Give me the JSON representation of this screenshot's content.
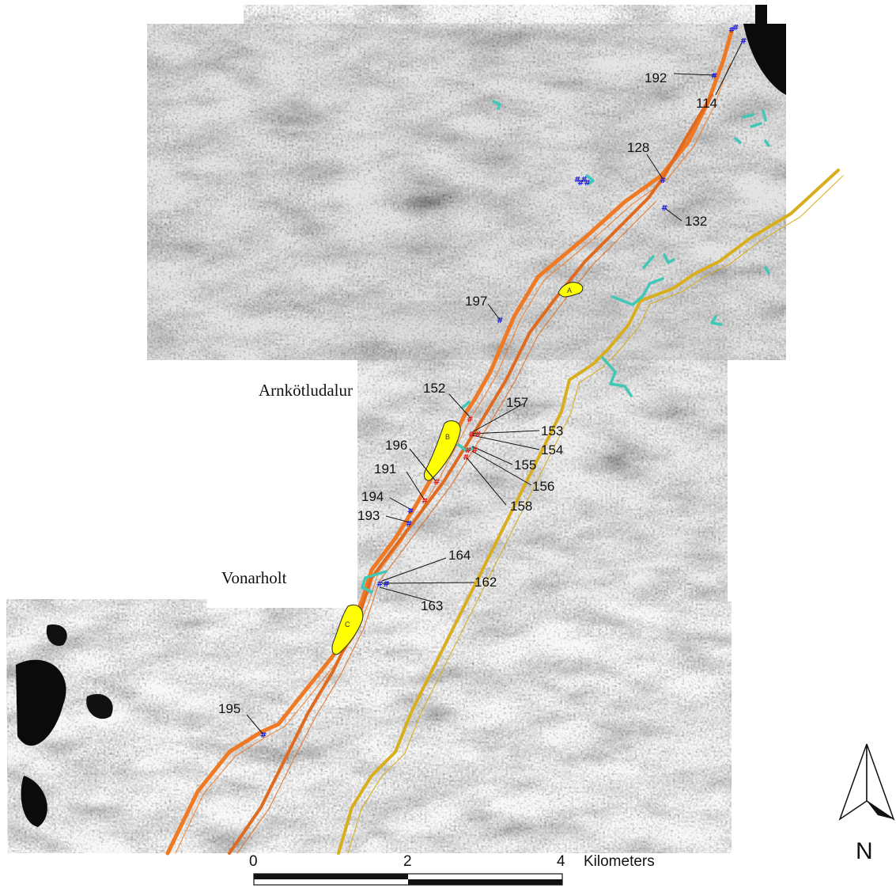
{
  "map": {
    "places": {
      "arnkotludalur": "Arnkötludalur",
      "vonarholt": "Vonarholt"
    },
    "areas": {
      "a": "A",
      "b": "B",
      "c": "C"
    },
    "points": [
      {
        "id": "p192",
        "label": "192"
      },
      {
        "id": "p114",
        "label": "114"
      },
      {
        "id": "p128",
        "label": "128"
      },
      {
        "id": "p132",
        "label": "132"
      },
      {
        "id": "p197",
        "label": "197"
      },
      {
        "id": "p152",
        "label": "152"
      },
      {
        "id": "p157",
        "label": "157"
      },
      {
        "id": "p153",
        "label": "153"
      },
      {
        "id": "p154",
        "label": "154"
      },
      {
        "id": "p155",
        "label": "155"
      },
      {
        "id": "p156",
        "label": "156"
      },
      {
        "id": "p158",
        "label": "158"
      },
      {
        "id": "p196",
        "label": "196"
      },
      {
        "id": "p191",
        "label": "191"
      },
      {
        "id": "p194",
        "label": "194"
      },
      {
        "id": "p193",
        "label": "193"
      },
      {
        "id": "p164",
        "label": "164"
      },
      {
        "id": "p162",
        "label": "162"
      },
      {
        "id": "p163",
        "label": "163"
      },
      {
        "id": "p195",
        "label": "195"
      }
    ],
    "scale_bar": {
      "ticks": [
        "0",
        "2",
        "4"
      ],
      "unit": "Kilometers"
    },
    "north_arrow": {
      "label": "N"
    },
    "colors": {
      "fault_orange": "#f07a24",
      "fault_dark_orange": "#e06a1e",
      "fault_yellow": "#d8ae1c",
      "fissure_cyan": "#3fc8b8",
      "area_yellow": "#ffff00",
      "sample_blue": "#1a1adf",
      "sample_red": "#e01c1c"
    }
  }
}
